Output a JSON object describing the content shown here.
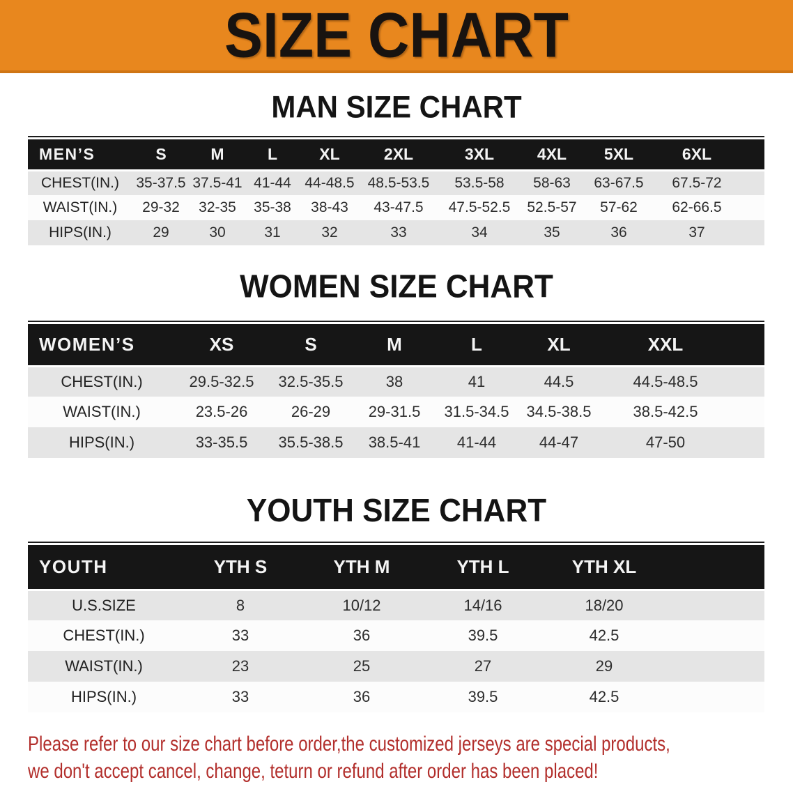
{
  "banner": {
    "title": "SIZE CHART",
    "bg_color": "#E8871E",
    "text_color": "#181310"
  },
  "colors": {
    "table_header_bg": "#161616",
    "table_header_text": "#F4F4F4",
    "row_gray": "#E5E5E5",
    "row_white": "#FCFCFC",
    "disclaimer_red": "#B22E2B"
  },
  "sections": [
    {
      "title": "MAN SIZE CHART",
      "table": {
        "header_label": "MEN’S",
        "sizes": [
          "S",
          "M",
          "L",
          "XL",
          "2XL",
          "3XL",
          "4XL",
          "5XL",
          "6XL"
        ],
        "rows": [
          {
            "label": "CHEST(IN.)",
            "values": [
              "35-37.5",
              "37.5-41",
              "41-44",
              "44-48.5",
              "48.5-53.5",
              "53.5-58",
              "58-63",
              "63-67.5",
              "67.5-72"
            ]
          },
          {
            "label": "WAIST(IN.)",
            "values": [
              "29-32",
              "32-35",
              "35-38",
              "38-43",
              "43-47.5",
              "47.5-52.5",
              "52.5-57",
              "57-62",
              "62-66.5"
            ]
          },
          {
            "label": "HIPS(IN.)",
            "values": [
              "29",
              "30",
              "31",
              "32",
              "33",
              "34",
              "35",
              "36",
              "37"
            ]
          }
        ]
      }
    },
    {
      "title": "WOMEN SIZE CHART",
      "table": {
        "header_label": "WOMEN’S",
        "sizes": [
          "XS",
          "S",
          "M",
          "L",
          "XL",
          "XXL"
        ],
        "rows": [
          {
            "label": "CHEST(IN.)",
            "values": [
              "29.5-32.5",
              "32.5-35.5",
              "38",
              "41",
              "44.5",
              "44.5-48.5"
            ]
          },
          {
            "label": "WAIST(IN.)",
            "values": [
              "23.5-26",
              "26-29",
              "29-31.5",
              "31.5-34.5",
              "34.5-38.5",
              "38.5-42.5"
            ]
          },
          {
            "label": "HIPS(IN.)",
            "values": [
              "33-35.5",
              "35.5-38.5",
              "38.5-41",
              "41-44",
              "44-47",
              "47-50"
            ]
          }
        ]
      }
    },
    {
      "title": "YOUTH SIZE CHART",
      "table": {
        "header_label": "YOUTH",
        "sizes": [
          "YTH S",
          "YTH M",
          "YTH L",
          "YTH XL"
        ],
        "rows": [
          {
            "label": "U.S.SIZE",
            "values": [
              "8",
              "10/12",
              "14/16",
              "18/20"
            ]
          },
          {
            "label": "CHEST(IN.)",
            "values": [
              "33",
              "36",
              "39.5",
              "42.5"
            ]
          },
          {
            "label": "WAIST(IN.)",
            "values": [
              "23",
              "25",
              "27",
              "29"
            ]
          },
          {
            "label": "HIPS(IN.)",
            "values": [
              "33",
              "36",
              "39.5",
              "42.5"
            ]
          }
        ]
      }
    }
  ],
  "footer": {
    "line1": "Please refer to our size chart before order,the customized jerseys are special products,",
    "line2": "we don't accept cancel, change, teturn or refund after order has been placed!"
  }
}
